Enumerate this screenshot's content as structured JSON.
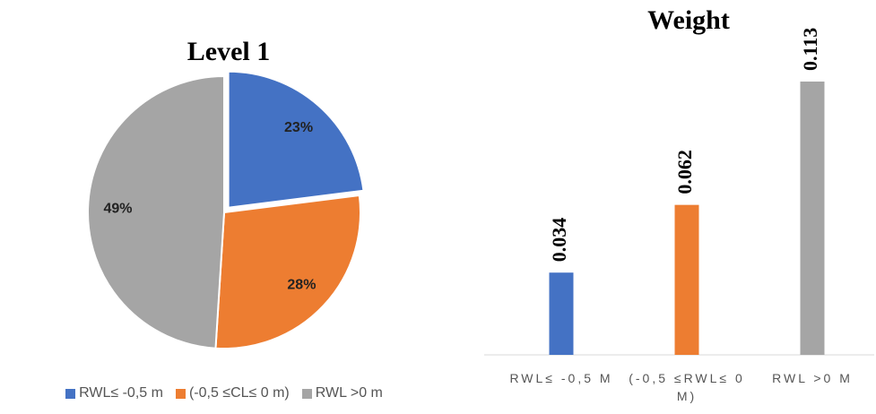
{
  "chart_data": [
    {
      "type": "pie",
      "title": "Level 1",
      "categories": [
        "RWL≤ -0,5 m",
        "(-0,5 ≤CL≤ 0 m)",
        "RWL >0 m"
      ],
      "values": [
        23,
        28,
        49
      ],
      "value_labels": [
        "23%",
        "28%",
        "49%"
      ],
      "colors": [
        "#4472c4",
        "#ed7d31",
        "#a5a5a5"
      ],
      "legend": "bottom"
    },
    {
      "type": "bar",
      "title": "Weight",
      "categories": [
        "RWL≤ -0,5 M",
        "(-0,5 ≤RWL≤ 0 M)",
        "RWL >0 M"
      ],
      "values": [
        0.034,
        0.062,
        0.113
      ],
      "colors": [
        "#4472c4",
        "#ed7d31",
        "#a5a5a5"
      ]
    }
  ]
}
